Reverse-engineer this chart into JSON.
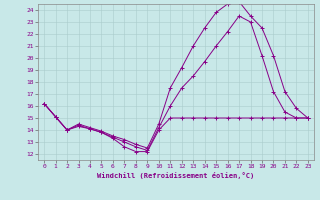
{
  "xlabel": "Windchill (Refroidissement éolien,°C)",
  "xlim": [
    -0.5,
    23.5
  ],
  "ylim": [
    11.5,
    24.5
  ],
  "yticks": [
    12,
    13,
    14,
    15,
    16,
    17,
    18,
    19,
    20,
    21,
    22,
    23,
    24
  ],
  "xticks": [
    0,
    1,
    2,
    3,
    4,
    5,
    6,
    7,
    8,
    9,
    10,
    11,
    12,
    13,
    14,
    15,
    16,
    17,
    18,
    19,
    20,
    21,
    22,
    23
  ],
  "bg_color": "#c8e8e8",
  "grid_color": "#aacccc",
  "line_color": "#880088",
  "line1_x": [
    0,
    1,
    2,
    3,
    4,
    5,
    6,
    7,
    8,
    9,
    10,
    11,
    12,
    13,
    14,
    15,
    16,
    17,
    18,
    19,
    20,
    21,
    22,
    23
  ],
  "line1_y": [
    16.2,
    15.1,
    14.0,
    14.3,
    14.1,
    13.8,
    13.3,
    12.6,
    12.2,
    12.2,
    14.0,
    15.0,
    15.0,
    15.0,
    15.0,
    15.0,
    15.0,
    15.0,
    15.0,
    15.0,
    15.0,
    15.0,
    15.0,
    15.0
  ],
  "line2_x": [
    0,
    1,
    2,
    3,
    4,
    5,
    6,
    7,
    8,
    9,
    10,
    11,
    12,
    13,
    14,
    15,
    16,
    17,
    18,
    19,
    20,
    21,
    22,
    23
  ],
  "line2_y": [
    16.2,
    15.1,
    14.0,
    14.4,
    14.1,
    13.8,
    13.4,
    13.0,
    12.6,
    12.3,
    14.2,
    16.0,
    17.5,
    18.5,
    19.7,
    21.0,
    22.2,
    23.5,
    23.0,
    20.2,
    17.2,
    15.5,
    15.0,
    15.0
  ],
  "line3_x": [
    0,
    1,
    2,
    3,
    4,
    5,
    6,
    7,
    8,
    9,
    10,
    11,
    12,
    13,
    14,
    15,
    16,
    17,
    18,
    19,
    20,
    21,
    22,
    23
  ],
  "line3_y": [
    16.2,
    15.1,
    14.0,
    14.5,
    14.2,
    13.9,
    13.5,
    13.2,
    12.8,
    12.5,
    14.5,
    17.5,
    19.2,
    21.0,
    22.5,
    23.8,
    24.5,
    24.7,
    23.5,
    22.5,
    20.2,
    17.2,
    15.8,
    15.0
  ]
}
